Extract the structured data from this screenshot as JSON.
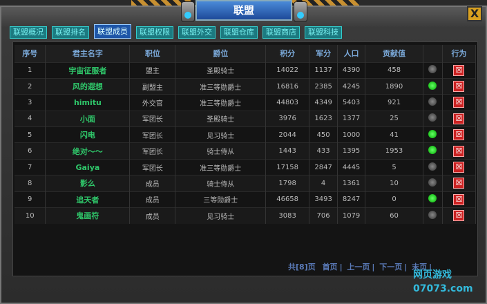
{
  "window": {
    "title": "联盟",
    "close_label": "X"
  },
  "tabs": [
    "联盟概况",
    "联盟排名",
    "联盟成员",
    "联盟权限",
    "联盟外交",
    "联盟仓库",
    "联盟商店",
    "联盟科技"
  ],
  "active_tab": "联盟成员",
  "table": {
    "headers": [
      "序号",
      "君主名字",
      "职位",
      "爵位",
      "积分",
      "军分",
      "人口",
      "贡献值",
      "",
      "行为"
    ],
    "rows": [
      [
        "1",
        "宇宙征服者",
        "盟主",
        "圣殿骑士",
        "14022",
        "1137",
        "4390",
        "458",
        false
      ],
      [
        "2",
        "风的遐想",
        "副盟主",
        "准三等勋爵士",
        "16816",
        "2385",
        "4245",
        "1890",
        true
      ],
      [
        "3",
        "himitu",
        "外交官",
        "准三等勋爵士",
        "44803",
        "4349",
        "5403",
        "921",
        false
      ],
      [
        "4",
        "小面",
        "军团长",
        "圣殿骑士",
        "3976",
        "1623",
        "1377",
        "25",
        false
      ],
      [
        "5",
        "闪电",
        "军团长",
        "见习骑士",
        "2044",
        "450",
        "1000",
        "41",
        true
      ],
      [
        "6",
        "绝对～～",
        "军团长",
        "骑士侍从",
        "1443",
        "433",
        "1395",
        "1953",
        true
      ],
      [
        "7",
        "Gaiya",
        "军团长",
        "准三等勋爵士",
        "17158",
        "2847",
        "4445",
        "5",
        false
      ],
      [
        "8",
        "影么",
        "成员",
        "骑士侍从",
        "1798",
        "4",
        "1361",
        "10",
        false
      ],
      [
        "9",
        "追天者",
        "成员",
        "三等勋爵士",
        "46658",
        "3493",
        "8247",
        "0",
        true
      ],
      [
        "10",
        "鬼画符",
        "成员",
        "见习骑士",
        "3083",
        "706",
        "1079",
        "60",
        false
      ]
    ]
  },
  "pager": {
    "total": "共[8]页",
    "first": "首页",
    "prev": "上一页",
    "next": "下一页",
    "last": "末页"
  },
  "watermark": {
    "line1": "网页游戏",
    "line2": "07073.com"
  }
}
